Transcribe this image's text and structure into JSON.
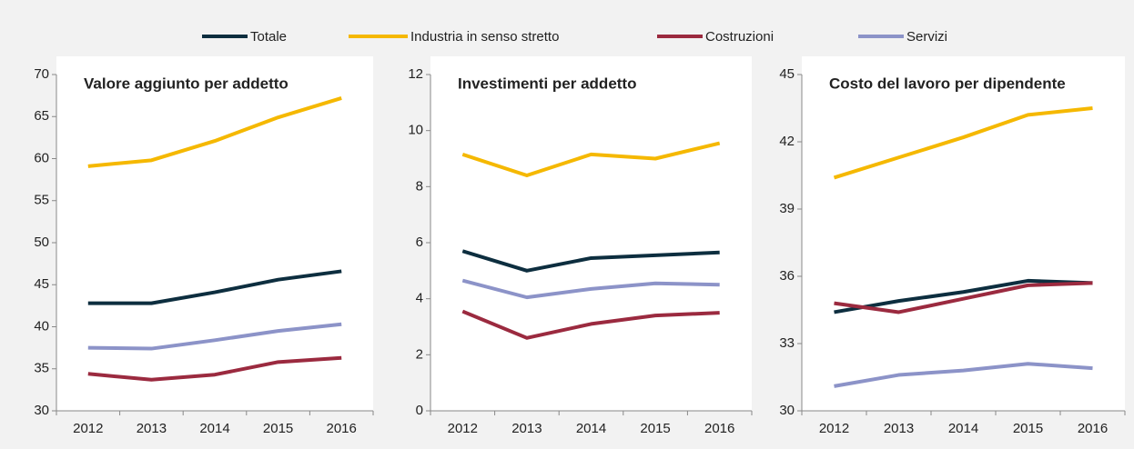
{
  "legend": [
    {
      "name": "Totale",
      "color": "#0d2e3f"
    },
    {
      "name": "Industria in senso stretto",
      "color": "#f5b800"
    },
    {
      "name": "Costruzioni",
      "color": "#9b2a3f"
    },
    {
      "name": "Servizi",
      "color": "#8c93c8"
    }
  ],
  "chart_data": [
    {
      "type": "line",
      "title": "Valore aggiunto per addetto",
      "categories": [
        "2012",
        "2013",
        "2014",
        "2015",
        "2016"
      ],
      "ylim": [
        30,
        70
      ],
      "yticks": [
        30,
        35,
        40,
        45,
        50,
        55,
        60,
        65,
        70
      ],
      "series": [
        {
          "values": [
            42.8,
            42.8,
            44.1,
            45.6,
            46.6
          ]
        },
        {
          "values": [
            59.1,
            59.8,
            62.1,
            64.9,
            67.2
          ]
        },
        {
          "values": [
            34.4,
            33.7,
            34.3,
            35.8,
            36.3
          ]
        },
        {
          "values": [
            37.5,
            37.4,
            38.4,
            39.5,
            40.3
          ]
        }
      ]
    },
    {
      "type": "line",
      "title": "Investimenti per addetto",
      "categories": [
        "2012",
        "2013",
        "2014",
        "2015",
        "2016"
      ],
      "ylim": [
        0,
        12
      ],
      "yticks": [
        0,
        2,
        4,
        6,
        8,
        10,
        12
      ],
      "series": [
        {
          "values": [
            5.7,
            5.0,
            5.45,
            5.55,
            5.65
          ]
        },
        {
          "values": [
            9.15,
            8.4,
            9.15,
            9.0,
            9.55
          ]
        },
        {
          "values": [
            3.55,
            2.6,
            3.1,
            3.4,
            3.5
          ]
        },
        {
          "values": [
            4.65,
            4.05,
            4.35,
            4.55,
            4.5
          ]
        }
      ]
    },
    {
      "type": "line",
      "title": "Costo del lavoro per dipendente",
      "categories": [
        "2012",
        "2013",
        "2014",
        "2015",
        "2016"
      ],
      "ylim": [
        30,
        45
      ],
      "yticks": [
        30,
        33,
        36,
        39,
        42,
        45
      ],
      "series": [
        {
          "values": [
            34.4,
            34.9,
            35.3,
            35.8,
            35.7
          ]
        },
        {
          "values": [
            40.4,
            41.3,
            42.2,
            43.2,
            43.5
          ]
        },
        {
          "values": [
            34.8,
            34.4,
            35.0,
            35.6,
            35.7
          ]
        },
        {
          "values": [
            31.1,
            31.6,
            31.8,
            32.1,
            31.9
          ]
        }
      ]
    }
  ]
}
